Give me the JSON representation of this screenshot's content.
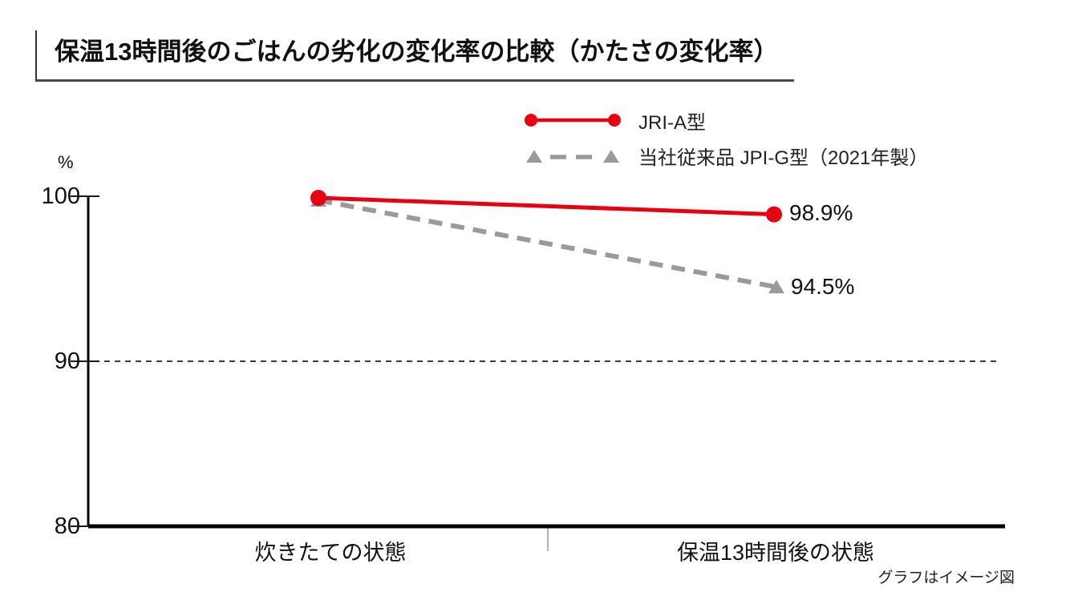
{
  "title": "保温13時間後のごはんの劣化の変化率の比較（かたさの変化率）",
  "note": "グラフはイメージ図",
  "colors": {
    "series_red": "#e60012",
    "series_gray": "#9a9a9a",
    "axis": "#000000",
    "tick": "#1a1a1a",
    "gridline": "#3c3c3c",
    "mid_tick": "#b0b0b0",
    "text": "#111111"
  },
  "chart_data": {
    "type": "line",
    "categories": [
      "炊きたての状態",
      "保温13時間後の状態"
    ],
    "series": [
      {
        "name": "JRI-A型",
        "values": [
          100,
          98.9
        ],
        "color": "#e60012",
        "line_style": "solid",
        "marker": "circle",
        "end_label": "98.9%"
      },
      {
        "name": "当社従来品 JPI-G型（2021年製）",
        "values": [
          100,
          94.5
        ],
        "color": "#9a9a9a",
        "line_style": "dashed",
        "marker": "triangle",
        "end_label": "94.5%"
      }
    ],
    "ylabel": "%",
    "yticks": [
      100,
      90,
      80
    ],
    "ylim": [
      80,
      100
    ],
    "gridline_y": 90,
    "grid": "dashed-horizontal-at-90",
    "legend_position": "top-center"
  }
}
